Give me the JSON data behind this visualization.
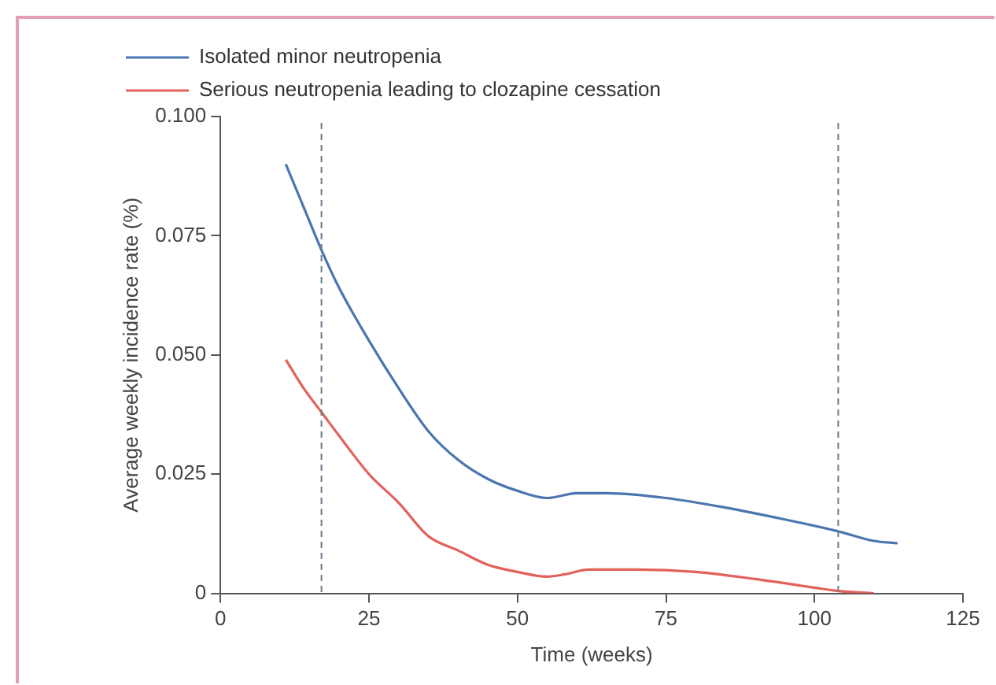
{
  "chart_data": {
    "type": "line",
    "xlabel": "Time (weeks)",
    "ylabel": "Average weekly incidence rate (%)",
    "series": [
      {
        "name": "Isolated minor neutropenia",
        "color": "#4a76b0",
        "x": [
          11,
          14,
          17,
          20,
          25,
          30,
          35,
          40,
          45,
          50,
          55,
          60,
          65,
          75,
          85,
          95,
          104,
          110,
          114
        ],
        "values": [
          0.09,
          0.081,
          0.072,
          0.064,
          0.053,
          0.043,
          0.034,
          0.028,
          0.024,
          0.0215,
          0.02,
          0.021,
          0.021,
          0.02,
          0.018,
          0.0155,
          0.013,
          0.011,
          0.0105
        ]
      },
      {
        "name": "Serious neutropenia leading to clozapine cessation",
        "color": "#e2615a",
        "x": [
          11,
          14,
          17,
          20,
          25,
          30,
          35,
          40,
          45,
          50,
          55,
          58,
          62,
          70,
          80,
          90,
          100,
          104,
          110
        ],
        "values": [
          0.049,
          0.043,
          0.038,
          0.033,
          0.025,
          0.019,
          0.012,
          0.009,
          0.006,
          0.0045,
          0.0035,
          0.004,
          0.005,
          0.005,
          0.0045,
          0.003,
          0.0012,
          0.0005,
          0
        ]
      }
    ],
    "xlim": [
      0,
      125
    ],
    "xticks": [
      0,
      25,
      50,
      75,
      100,
      125
    ],
    "ylim": [
      0,
      0.1
    ],
    "yticks": [
      0,
      {
        "value": 0.025,
        "label": "0.025"
      },
      {
        "value": 0.05,
        "label": "0.050"
      },
      {
        "value": 0.075,
        "label": "0.075"
      },
      {
        "value": 0.1,
        "label": "0.100"
      }
    ],
    "ref_lines": [
      {
        "axis": "x",
        "value": 17,
        "color": "#6b7a8c",
        "line_style": "dashed"
      },
      {
        "axis": "x",
        "value": 104,
        "color": "#6b7a8c",
        "line_style": "dashed"
      }
    ],
    "grid": false,
    "legend": "top left",
    "marker": "none",
    "line_style": "solid"
  }
}
